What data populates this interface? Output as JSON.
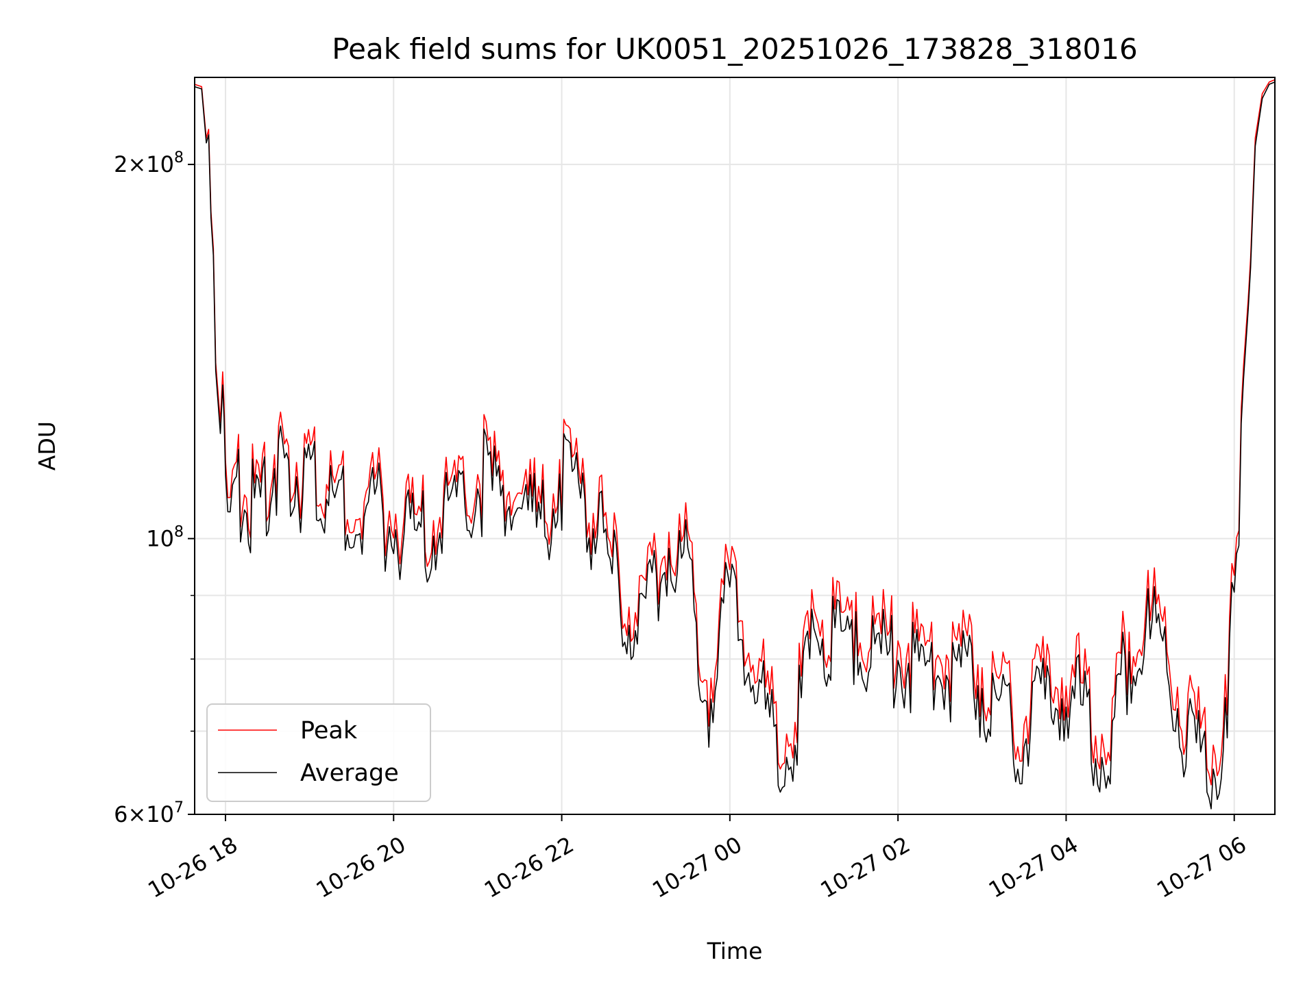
{
  "chart_data": {
    "type": "line",
    "title": "Peak field sums for UK0051_20251026_173828_318016",
    "xlabel": "Time",
    "ylabel": "ADU",
    "x_axis_type": "datetime",
    "y_scale": "log",
    "xlim": [
      "2025-10-26 17:38",
      "2025-10-27 06:29"
    ],
    "ylim": [
      60000000,
      235000000
    ],
    "x_tick_labels": [
      "10-26 18",
      "10-26 20",
      "10-26 22",
      "10-27 00",
      "10-27 02",
      "10-27 04",
      "10-27 06"
    ],
    "x_tick_values": [
      "2025-10-26 18:00",
      "2025-10-26 20:00",
      "2025-10-26 22:00",
      "2025-10-27 00:00",
      "2025-10-27 02:00",
      "2025-10-27 04:00",
      "2025-10-27 06:00"
    ],
    "y_tick_labels": [
      {
        "value": 60000000,
        "mantissa": "6",
        "exponent": "7"
      },
      {
        "value": 100000000,
        "mantissa": "",
        "exponent": "8"
      },
      {
        "value": 200000000,
        "mantissa": "2",
        "exponent": "8"
      }
    ],
    "y_minor_grid": [
      70000000,
      80000000,
      90000000
    ],
    "grid": true,
    "legend_position": "lower-left",
    "series": [
      {
        "name": "Peak",
        "color": "#ff0000",
        "x": [
          "2025-10-26 17:38",
          "2025-10-26 17:43",
          "2025-10-26 17:48",
          "2025-10-26 17:53",
          "2025-10-26 17:58",
          "2025-10-26 18:00",
          "2025-10-26 18:05",
          "2025-10-26 18:15",
          "2025-10-26 18:25",
          "2025-10-26 18:35",
          "2025-10-26 18:45",
          "2025-10-26 18:55",
          "2025-10-26 19:05",
          "2025-10-26 19:15",
          "2025-10-26 19:30",
          "2025-10-26 19:45",
          "2025-10-26 20:00",
          "2025-10-26 20:15",
          "2025-10-26 20:30",
          "2025-10-26 20:45",
          "2025-10-26 21:00",
          "2025-10-26 21:15",
          "2025-10-26 21:30",
          "2025-10-26 21:45",
          "2025-10-26 22:00",
          "2025-10-26 22:15",
          "2025-10-26 22:30",
          "2025-10-26 22:45",
          "2025-10-26 23:00",
          "2025-10-26 23:15",
          "2025-10-26 23:30",
          "2025-10-26 23:45",
          "2025-10-27 00:00",
          "2025-10-27 00:15",
          "2025-10-27 00:30",
          "2025-10-27 00:45",
          "2025-10-27 01:00",
          "2025-10-27 01:15",
          "2025-10-27 01:30",
          "2025-10-27 01:45",
          "2025-10-27 02:00",
          "2025-10-27 02:15",
          "2025-10-27 02:30",
          "2025-10-27 02:45",
          "2025-10-27 03:00",
          "2025-10-27 03:15",
          "2025-10-27 03:30",
          "2025-10-27 03:45",
          "2025-10-27 04:00",
          "2025-10-27 04:15",
          "2025-10-27 04:30",
          "2025-10-27 04:45",
          "2025-10-27 05:00",
          "2025-10-27 05:15",
          "2025-10-27 05:30",
          "2025-10-27 05:45",
          "2025-10-27 05:55",
          "2025-10-27 06:00",
          "2025-10-27 06:05",
          "2025-10-27 06:10",
          "2025-10-27 06:15",
          "2025-10-27 06:20",
          "2025-10-27 06:25",
          "2025-10-27 06:29"
        ],
        "values": [
          232000000,
          231000000,
          200000000,
          140000000,
          125000000,
          118000000,
          112000000,
          108000000,
          110000000,
          118000000,
          117000000,
          114000000,
          112000000,
          110000000,
          108000000,
          109000000,
          105000000,
          104000000,
          106000000,
          109000000,
          115000000,
          110000000,
          111000000,
          103000000,
          114000000,
          112000000,
          101000000,
          90000000,
          92000000,
          102000000,
          96000000,
          78000000,
          94000000,
          83000000,
          72000000,
          71000000,
          86000000,
          88000000,
          85000000,
          83000000,
          84000000,
          82000000,
          81000000,
          80000000,
          79000000,
          74000000,
          73000000,
          76000000,
          79000000,
          74000000,
          70000000,
          84000000,
          90000000,
          80000000,
          70000000,
          69000000,
          72000000,
          97000000,
          115000000,
          160000000,
          210000000,
          228000000,
          233000000,
          234000000
        ]
      },
      {
        "name": "Average",
        "color": "#000000",
        "x": [
          "2025-10-26 17:38",
          "2025-10-26 17:43",
          "2025-10-26 17:48",
          "2025-10-26 17:53",
          "2025-10-26 17:58",
          "2025-10-26 18:00",
          "2025-10-26 18:05",
          "2025-10-26 18:15",
          "2025-10-26 18:25",
          "2025-10-26 18:35",
          "2025-10-26 18:45",
          "2025-10-26 18:55",
          "2025-10-26 19:05",
          "2025-10-26 19:15",
          "2025-10-26 19:30",
          "2025-10-26 19:45",
          "2025-10-26 20:00",
          "2025-10-26 20:15",
          "2025-10-26 20:30",
          "2025-10-26 20:45",
          "2025-10-26 21:00",
          "2025-10-26 21:15",
          "2025-10-26 21:30",
          "2025-10-26 21:45",
          "2025-10-26 22:00",
          "2025-10-26 22:15",
          "2025-10-26 22:30",
          "2025-10-26 22:45",
          "2025-10-26 23:00",
          "2025-10-26 23:15",
          "2025-10-26 23:30",
          "2025-10-26 23:45",
          "2025-10-27 00:00",
          "2025-10-27 00:15",
          "2025-10-27 00:30",
          "2025-10-27 00:45",
          "2025-10-27 01:00",
          "2025-10-27 01:15",
          "2025-10-27 01:30",
          "2025-10-27 01:45",
          "2025-10-27 02:00",
          "2025-10-27 02:15",
          "2025-10-27 02:30",
          "2025-10-27 02:45",
          "2025-10-27 03:00",
          "2025-10-27 03:15",
          "2025-10-27 03:30",
          "2025-10-27 03:45",
          "2025-10-27 04:00",
          "2025-10-27 04:15",
          "2025-10-27 04:30",
          "2025-10-27 04:45",
          "2025-10-27 05:00",
          "2025-10-27 05:15",
          "2025-10-27 05:30",
          "2025-10-27 05:45",
          "2025-10-27 05:55",
          "2025-10-27 06:00",
          "2025-10-27 06:05",
          "2025-10-27 06:10",
          "2025-10-27 06:15",
          "2025-10-27 06:20",
          "2025-10-27 06:25",
          "2025-10-27 06:29"
        ],
        "values": [
          231000000,
          230000000,
          198000000,
          138000000,
          122000000,
          115000000,
          109000000,
          105000000,
          107000000,
          115000000,
          114000000,
          111000000,
          109000000,
          107000000,
          105000000,
          106000000,
          102000000,
          101000000,
          103000000,
          106000000,
          112000000,
          107000000,
          108000000,
          100000000,
          111000000,
          109000000,
          98000000,
          87000000,
          89000000,
          99000000,
          93000000,
          75000000,
          91000000,
          80000000,
          69000000,
          68000000,
          83000000,
          85000000,
          82000000,
          80000000,
          81000000,
          79000000,
          78000000,
          77000000,
          76000000,
          71000000,
          70000000,
          73000000,
          76000000,
          71000000,
          67000000,
          81000000,
          87000000,
          77000000,
          67000000,
          66000000,
          69000000,
          94000000,
          112000000,
          157000000,
          207000000,
          226000000,
          232000000,
          233000000
        ]
      }
    ]
  }
}
